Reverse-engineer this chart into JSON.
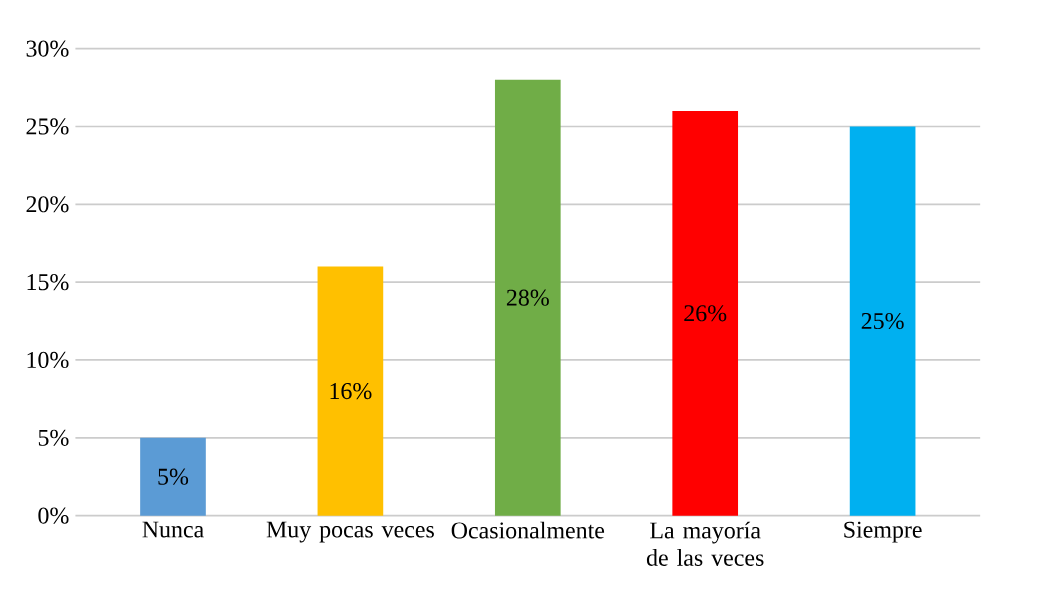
{
  "chart_data": {
    "type": "bar",
    "categories": [
      "Nunca",
      "Muy pocas veces",
      "Ocasionalmente",
      "La mayoría de las veces",
      "Siempre"
    ],
    "values": [
      5,
      16,
      28,
      26,
      25
    ],
    "value_labels": [
      "5%",
      "16%",
      "28%",
      "26%",
      "25%"
    ],
    "colors": [
      "#5b9bd5",
      "#ffc000",
      "#70ad47",
      "#ff0000",
      "#00b0f0"
    ],
    "ylim": [
      0,
      30
    ],
    "yticks": [
      {
        "value": 0,
        "label": "0%"
      },
      {
        "value": 5,
        "label": "5%"
      },
      {
        "value": 10,
        "label": "10%"
      },
      {
        "value": 15,
        "label": "15%"
      },
      {
        "value": 20,
        "label": "20%"
      },
      {
        "value": 25,
        "label": "25%"
      },
      {
        "value": 30,
        "label": "30%"
      }
    ],
    "grid": "y"
  }
}
